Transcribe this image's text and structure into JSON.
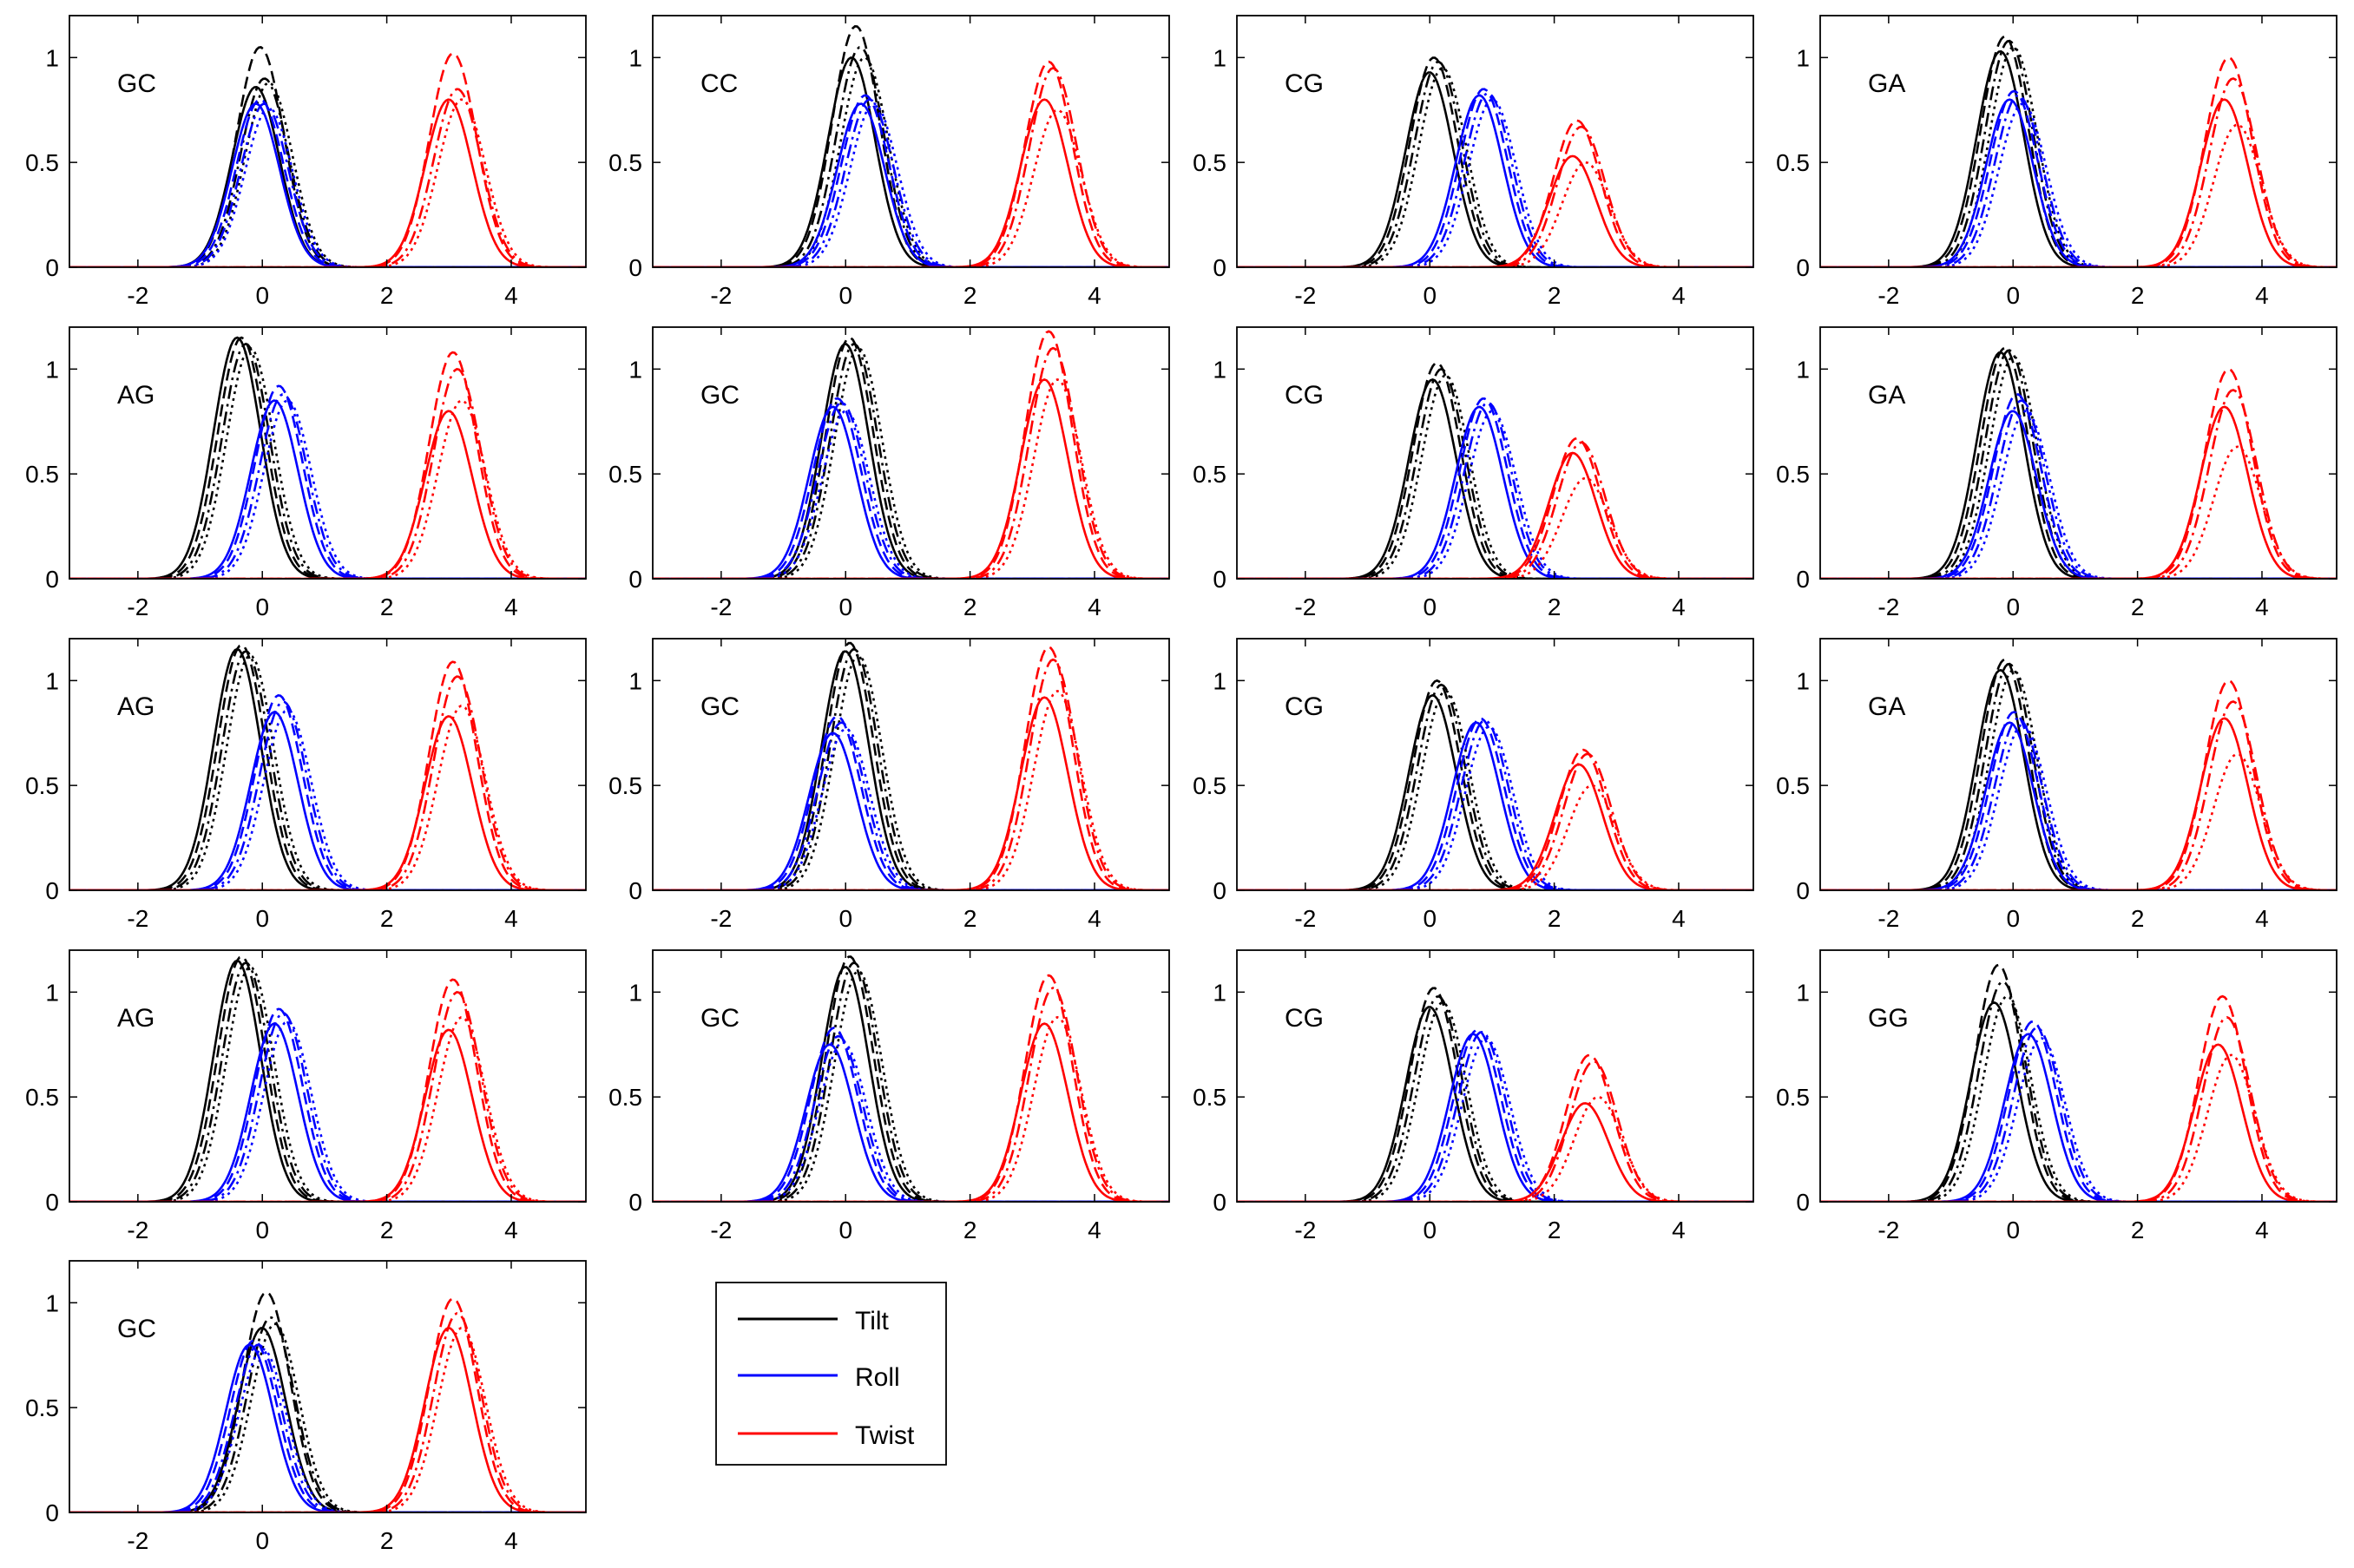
{
  "figure": {
    "legend": [
      {
        "label": "Tilt",
        "color": "#000000"
      },
      {
        "label": "Roll",
        "color": "#0000ff"
      },
      {
        "label": "Twist",
        "color": "#ff0000"
      }
    ]
  },
  "chart_data": {
    "type": "line",
    "shared_axes": {
      "xlim": [
        -3.1,
        5.2
      ],
      "ylim": [
        0,
        1.2
      ],
      "xticks": [
        -2,
        0,
        2,
        4
      ],
      "xtick_labels": [
        "-2",
        "0",
        "2",
        "4"
      ],
      "yticks": [
        0,
        0.5,
        1
      ],
      "ytick_labels": [
        "0",
        "0.5",
        "1"
      ],
      "grid": false,
      "line_styles": [
        "solid",
        "dashed",
        "dash-dot",
        "dotted"
      ]
    },
    "series_names": [
      "Tilt",
      "Roll",
      "Twist"
    ],
    "colors": {
      "Tilt": "#000000",
      "Roll": "#0000ff",
      "Twist": "#ff0000"
    },
    "panels": [
      {
        "label": "GC",
        "Tilt": {
          "center": 0.0,
          "peaks": [
            0.86,
            1.05,
            0.9,
            0.88
          ]
        },
        "Roll": {
          "center": 0.0,
          "peaks": [
            0.78,
            0.8,
            0.78,
            0.76
          ]
        },
        "Twist": {
          "center": 3.1,
          "peaks": [
            0.8,
            1.02,
            0.85,
            0.8
          ]
        }
      },
      {
        "label": "CC",
        "Tilt": {
          "center": 0.2,
          "peaks": [
            1.0,
            1.15,
            1.05,
            1.0
          ]
        },
        "Roll": {
          "center": 0.35,
          "peaks": [
            0.78,
            0.82,
            0.8,
            0.78
          ]
        },
        "Twist": {
          "center": 3.3,
          "peaks": [
            0.8,
            0.98,
            0.95,
            0.75
          ]
        }
      },
      {
        "label": "CG",
        "Tilt": {
          "center": 0.1,
          "peaks": [
            0.93,
            1.0,
            0.98,
            0.95
          ]
        },
        "Roll": {
          "center": 0.9,
          "peaks": [
            0.82,
            0.85,
            0.83,
            0.8
          ]
        },
        "Twist": {
          "center": 2.4,
          "peaks": [
            0.53,
            0.7,
            0.67,
            0.5
          ]
        }
      },
      {
        "label": "GA",
        "Tilt": {
          "center": -0.1,
          "peaks": [
            1.03,
            1.1,
            1.08,
            1.05
          ]
        },
        "Roll": {
          "center": 0.05,
          "peaks": [
            0.8,
            0.84,
            0.82,
            0.78
          ]
        },
        "Twist": {
          "center": 3.5,
          "peaks": [
            0.8,
            1.0,
            0.9,
            0.68
          ]
        }
      },
      {
        "label": "AG",
        "Tilt": {
          "center": -0.3,
          "peaks": [
            1.15,
            1.15,
            1.12,
            1.1
          ]
        },
        "Roll": {
          "center": 0.3,
          "peaks": [
            0.85,
            0.92,
            0.88,
            0.85
          ]
        },
        "Twist": {
          "center": 3.1,
          "peaks": [
            0.8,
            1.08,
            1.0,
            0.85
          ]
        }
      },
      {
        "label": "GC",
        "Tilt": {
          "center": 0.1,
          "peaks": [
            1.12,
            1.15,
            1.12,
            1.1
          ]
        },
        "Roll": {
          "center": -0.1,
          "peaks": [
            0.82,
            0.86,
            0.84,
            0.8
          ]
        },
        "Twist": {
          "center": 3.3,
          "peaks": [
            0.95,
            1.18,
            1.1,
            0.95
          ]
        }
      },
      {
        "label": "CG",
        "Tilt": {
          "center": 0.15,
          "peaks": [
            0.95,
            1.03,
            1.0,
            0.97
          ]
        },
        "Roll": {
          "center": 0.9,
          "peaks": [
            0.82,
            0.86,
            0.84,
            0.8
          ]
        },
        "Twist": {
          "center": 2.4,
          "peaks": [
            0.6,
            0.67,
            0.65,
            0.48
          ]
        }
      },
      {
        "label": "GA",
        "Tilt": {
          "center": -0.1,
          "peaks": [
            1.08,
            1.1,
            1.09,
            1.06
          ]
        },
        "Roll": {
          "center": 0.1,
          "peaks": [
            0.8,
            0.88,
            0.85,
            0.8
          ]
        },
        "Twist": {
          "center": 3.5,
          "peaks": [
            0.82,
            1.0,
            0.9,
            0.63
          ]
        }
      },
      {
        "label": "AG",
        "Tilt": {
          "center": -0.3,
          "peaks": [
            1.15,
            1.17,
            1.14,
            1.12
          ]
        },
        "Roll": {
          "center": 0.3,
          "peaks": [
            0.85,
            0.93,
            0.9,
            0.86
          ]
        },
        "Twist": {
          "center": 3.1,
          "peaks": [
            0.83,
            1.09,
            1.02,
            0.88
          ]
        }
      },
      {
        "label": "GC",
        "Tilt": {
          "center": 0.1,
          "peaks": [
            1.14,
            1.18,
            1.15,
            1.12
          ]
        },
        "Roll": {
          "center": -0.1,
          "peaks": [
            0.75,
            0.83,
            0.8,
            0.77
          ]
        },
        "Twist": {
          "center": 3.3,
          "peaks": [
            0.92,
            1.16,
            1.1,
            0.95
          ]
        }
      },
      {
        "label": "CG",
        "Tilt": {
          "center": 0.15,
          "peaks": [
            0.93,
            1.0,
            0.98,
            0.95
          ]
        },
        "Roll": {
          "center": 0.85,
          "peaks": [
            0.8,
            0.82,
            0.81,
            0.78
          ]
        },
        "Twist": {
          "center": 2.5,
          "peaks": [
            0.6,
            0.67,
            0.65,
            0.5
          ]
        }
      },
      {
        "label": "GA",
        "Tilt": {
          "center": -0.1,
          "peaks": [
            1.05,
            1.1,
            1.08,
            1.05
          ]
        },
        "Roll": {
          "center": 0.05,
          "peaks": [
            0.8,
            0.85,
            0.82,
            0.79
          ]
        },
        "Twist": {
          "center": 3.5,
          "peaks": [
            0.82,
            1.0,
            0.9,
            0.65
          ]
        }
      },
      {
        "label": "AG",
        "Tilt": {
          "center": -0.3,
          "peaks": [
            1.15,
            1.17,
            1.14,
            1.12
          ]
        },
        "Roll": {
          "center": 0.3,
          "peaks": [
            0.85,
            0.92,
            0.9,
            0.86
          ]
        },
        "Twist": {
          "center": 3.1,
          "peaks": [
            0.82,
            1.06,
            1.0,
            0.88
          ]
        }
      },
      {
        "label": "GC",
        "Tilt": {
          "center": 0.1,
          "peaks": [
            1.12,
            1.17,
            1.14,
            1.1
          ]
        },
        "Roll": {
          "center": -0.15,
          "peaks": [
            0.75,
            0.83,
            0.79,
            0.76
          ]
        },
        "Twist": {
          "center": 3.3,
          "peaks": [
            0.85,
            1.08,
            1.02,
            0.88
          ]
        }
      },
      {
        "label": "CG",
        "Tilt": {
          "center": 0.1,
          "peaks": [
            0.93,
            1.02,
            0.98,
            0.95
          ]
        },
        "Roll": {
          "center": 0.8,
          "peaks": [
            0.8,
            0.82,
            0.81,
            0.78
          ]
        },
        "Twist": {
          "center": 2.6,
          "peaks": [
            0.47,
            0.7,
            0.67,
            0.5
          ]
        }
      },
      {
        "label": "GG",
        "Tilt": {
          "center": -0.2,
          "peaks": [
            0.95,
            1.13,
            1.05,
            0.98
          ]
        },
        "Roll": {
          "center": 0.35,
          "peaks": [
            0.8,
            0.86,
            0.83,
            0.78
          ]
        },
        "Twist": {
          "center": 3.4,
          "peaks": [
            0.75,
            0.98,
            0.88,
            0.7
          ]
        }
      },
      {
        "label": "GC",
        "Tilt": {
          "center": 0.1,
          "peaks": [
            0.88,
            1.05,
            0.93,
            0.9
          ]
        },
        "Roll": {
          "center": -0.1,
          "peaks": [
            0.8,
            0.82,
            0.8,
            0.78
          ]
        },
        "Twist": {
          "center": 3.1,
          "peaks": [
            0.88,
            1.02,
            0.95,
            0.88
          ]
        }
      }
    ]
  }
}
